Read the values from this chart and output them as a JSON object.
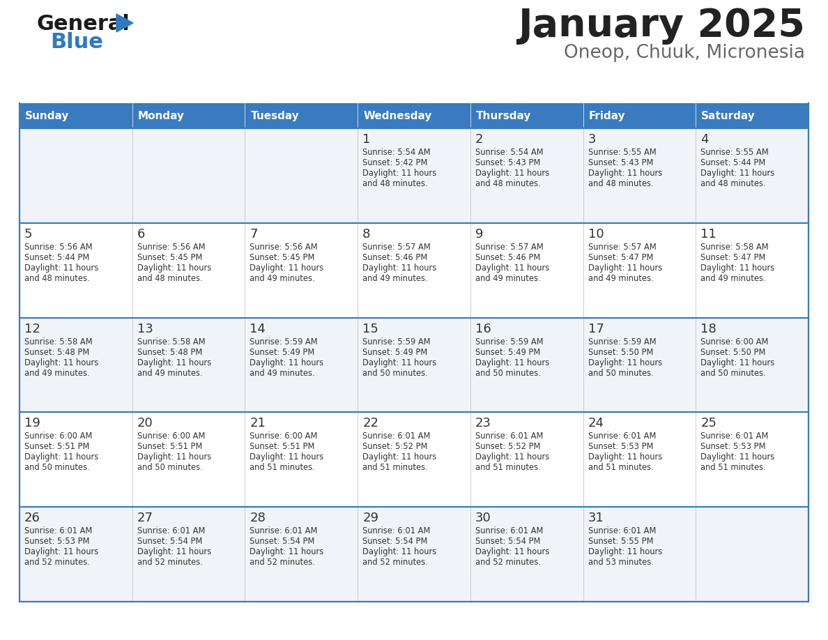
{
  "title": "January 2025",
  "subtitle": "Oneop, Chuuk, Micronesia",
  "days_of_week": [
    "Sunday",
    "Monday",
    "Tuesday",
    "Wednesday",
    "Thursday",
    "Friday",
    "Saturday"
  ],
  "header_bg": "#3a7abf",
  "header_text_color": "#ffffff",
  "cell_bg_odd": "#f0f4f8",
  "cell_bg_even": "#ffffff",
  "row_line_color": "#3a7abf",
  "text_color": "#333333",
  "title_color": "#222222",
  "subtitle_color": "#666666",
  "general_color": "#222222",
  "blue_color": "#2e7abf",
  "weeks": [
    [
      {
        "day": null,
        "sunrise": null,
        "sunset": null,
        "daylight": null
      },
      {
        "day": null,
        "sunrise": null,
        "sunset": null,
        "daylight": null
      },
      {
        "day": null,
        "sunrise": null,
        "sunset": null,
        "daylight": null
      },
      {
        "day": 1,
        "sunrise": "5:54 AM",
        "sunset": "5:42 PM",
        "daylight": "11 hours and 48 minutes."
      },
      {
        "day": 2,
        "sunrise": "5:54 AM",
        "sunset": "5:43 PM",
        "daylight": "11 hours and 48 minutes."
      },
      {
        "day": 3,
        "sunrise": "5:55 AM",
        "sunset": "5:43 PM",
        "daylight": "11 hours and 48 minutes."
      },
      {
        "day": 4,
        "sunrise": "5:55 AM",
        "sunset": "5:44 PM",
        "daylight": "11 hours and 48 minutes."
      }
    ],
    [
      {
        "day": 5,
        "sunrise": "5:56 AM",
        "sunset": "5:44 PM",
        "daylight": "11 hours and 48 minutes."
      },
      {
        "day": 6,
        "sunrise": "5:56 AM",
        "sunset": "5:45 PM",
        "daylight": "11 hours and 48 minutes."
      },
      {
        "day": 7,
        "sunrise": "5:56 AM",
        "sunset": "5:45 PM",
        "daylight": "11 hours and 49 minutes."
      },
      {
        "day": 8,
        "sunrise": "5:57 AM",
        "sunset": "5:46 PM",
        "daylight": "11 hours and 49 minutes."
      },
      {
        "day": 9,
        "sunrise": "5:57 AM",
        "sunset": "5:46 PM",
        "daylight": "11 hours and 49 minutes."
      },
      {
        "day": 10,
        "sunrise": "5:57 AM",
        "sunset": "5:47 PM",
        "daylight": "11 hours and 49 minutes."
      },
      {
        "day": 11,
        "sunrise": "5:58 AM",
        "sunset": "5:47 PM",
        "daylight": "11 hours and 49 minutes."
      }
    ],
    [
      {
        "day": 12,
        "sunrise": "5:58 AM",
        "sunset": "5:48 PM",
        "daylight": "11 hours and 49 minutes."
      },
      {
        "day": 13,
        "sunrise": "5:58 AM",
        "sunset": "5:48 PM",
        "daylight": "11 hours and 49 minutes."
      },
      {
        "day": 14,
        "sunrise": "5:59 AM",
        "sunset": "5:49 PM",
        "daylight": "11 hours and 49 minutes."
      },
      {
        "day": 15,
        "sunrise": "5:59 AM",
        "sunset": "5:49 PM",
        "daylight": "11 hours and 50 minutes."
      },
      {
        "day": 16,
        "sunrise": "5:59 AM",
        "sunset": "5:49 PM",
        "daylight": "11 hours and 50 minutes."
      },
      {
        "day": 17,
        "sunrise": "5:59 AM",
        "sunset": "5:50 PM",
        "daylight": "11 hours and 50 minutes."
      },
      {
        "day": 18,
        "sunrise": "6:00 AM",
        "sunset": "5:50 PM",
        "daylight": "11 hours and 50 minutes."
      }
    ],
    [
      {
        "day": 19,
        "sunrise": "6:00 AM",
        "sunset": "5:51 PM",
        "daylight": "11 hours and 50 minutes."
      },
      {
        "day": 20,
        "sunrise": "6:00 AM",
        "sunset": "5:51 PM",
        "daylight": "11 hours and 50 minutes."
      },
      {
        "day": 21,
        "sunrise": "6:00 AM",
        "sunset": "5:51 PM",
        "daylight": "11 hours and 51 minutes."
      },
      {
        "day": 22,
        "sunrise": "6:01 AM",
        "sunset": "5:52 PM",
        "daylight": "11 hours and 51 minutes."
      },
      {
        "day": 23,
        "sunrise": "6:01 AM",
        "sunset": "5:52 PM",
        "daylight": "11 hours and 51 minutes."
      },
      {
        "day": 24,
        "sunrise": "6:01 AM",
        "sunset": "5:53 PM",
        "daylight": "11 hours and 51 minutes."
      },
      {
        "day": 25,
        "sunrise": "6:01 AM",
        "sunset": "5:53 PM",
        "daylight": "11 hours and 51 minutes."
      }
    ],
    [
      {
        "day": 26,
        "sunrise": "6:01 AM",
        "sunset": "5:53 PM",
        "daylight": "11 hours and 52 minutes."
      },
      {
        "day": 27,
        "sunrise": "6:01 AM",
        "sunset": "5:54 PM",
        "daylight": "11 hours and 52 minutes."
      },
      {
        "day": 28,
        "sunrise": "6:01 AM",
        "sunset": "5:54 PM",
        "daylight": "11 hours and 52 minutes."
      },
      {
        "day": 29,
        "sunrise": "6:01 AM",
        "sunset": "5:54 PM",
        "daylight": "11 hours and 52 minutes."
      },
      {
        "day": 30,
        "sunrise": "6:01 AM",
        "sunset": "5:54 PM",
        "daylight": "11 hours and 52 minutes."
      },
      {
        "day": 31,
        "sunrise": "6:01 AM",
        "sunset": "5:55 PM",
        "daylight": "11 hours and 53 minutes."
      },
      {
        "day": null,
        "sunrise": null,
        "sunset": null,
        "daylight": null
      }
    ]
  ]
}
